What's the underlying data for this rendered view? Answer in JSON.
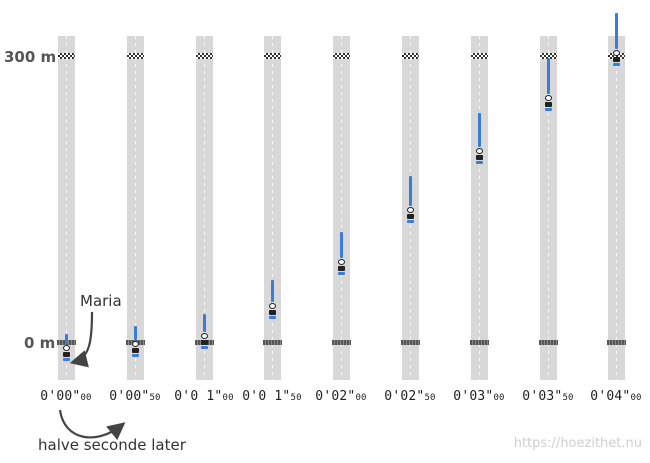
{
  "axis": {
    "top_label": "300 m",
    "bottom_label": "0 m",
    "top_distance_m": 300,
    "bottom_distance_m": 0
  },
  "frames": [
    {
      "time_main": "0'00\"",
      "time_small": "00",
      "distance_m": -7
    },
    {
      "time_main": "0'00\"",
      "time_small": "50",
      "distance_m": -3
    },
    {
      "time_main": "0'0 1\"",
      "time_small": "00",
      "distance_m": 5
    },
    {
      "time_main": "0'0 1\"",
      "time_small": "50",
      "distance_m": 37
    },
    {
      "time_main": "0'02\"",
      "time_small": "00",
      "distance_m": 83
    },
    {
      "time_main": "0'02\"",
      "time_small": "50",
      "distance_m": 137
    },
    {
      "time_main": "0'03\"",
      "time_small": "00",
      "distance_m": 199
    },
    {
      "time_main": "0'03\"",
      "time_small": "50",
      "distance_m": 254
    },
    {
      "time_main": "0'04\"",
      "time_small": "00",
      "distance_m": 301
    }
  ],
  "annotations": {
    "skater_name": "Maria",
    "half_second_note": "halve seconde later"
  },
  "watermark": "https://hoezithet.nu",
  "colors": {
    "lane": "#d8d8d8",
    "skater_trail": "#3a7dd8",
    "skater_dark": "#222222"
  }
}
